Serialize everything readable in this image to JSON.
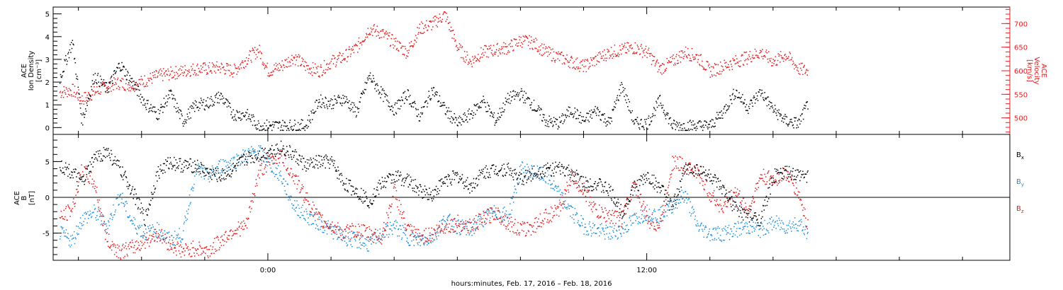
{
  "xlabel": "hours:minutes, Feb. 17, 2016 – Feb. 18, 2016",
  "x_ticks": [
    "0:00",
    "12:00"
  ],
  "colors": {
    "black": "#000000",
    "red": "#e41a1c",
    "blue": "#1f8fd8"
  },
  "chart_data": [
    {
      "type": "scatter",
      "ylabel_left": [
        "ACE",
        "Ion Density",
        "[cm⁻³]"
      ],
      "ylabel_right": [
        "ACE",
        "Velocity",
        "[km/s]"
      ],
      "xlim_hours": [
        -6.8,
        23.5
      ],
      "data_end_hours": 17.1,
      "left_axis": {
        "ylim": [
          -0.3,
          5.3
        ],
        "ticks": [
          "0",
          "1",
          "2",
          "3",
          "4",
          "5"
        ],
        "tick_values": [
          0,
          1,
          2,
          3,
          4,
          5
        ]
      },
      "right_axis": {
        "ylim": [
          465,
          735
        ],
        "ticks": [
          "500",
          "550",
          "600",
          "650",
          "700"
        ],
        "tick_values": [
          500,
          550,
          600,
          650,
          700
        ]
      },
      "series": [
        {
          "axis": "left",
          "color": "black",
          "x": [
            -6.6,
            -6.2,
            -5.9,
            -5.5,
            -5.1,
            -4.7,
            -4.3,
            -3.9,
            -3.5,
            -3.1,
            -2.7,
            -2.3,
            -1.9,
            -1.5,
            -1.1,
            -0.7,
            -0.3,
            0.0,
            0.4,
            0.8,
            1.2,
            1.6,
            2.0,
            2.4,
            2.8,
            3.2,
            3.6,
            4.0,
            4.4,
            4.8,
            5.2,
            5.6,
            6.0,
            6.4,
            6.8,
            7.2,
            7.6,
            8.0,
            8.4,
            8.8,
            9.2,
            9.6,
            10.0,
            10.4,
            10.8,
            11.2,
            11.6,
            12.0,
            12.4,
            12.8,
            13.2,
            13.6,
            14.0,
            14.4,
            14.8,
            15.2,
            15.6,
            16.0,
            16.4,
            16.8,
            17.1
          ],
          "values": [
            2.2,
            3.8,
            0.3,
            2.3,
            1.7,
            2.8,
            2.0,
            1.1,
            0.6,
            1.5,
            0.3,
            1.0,
            1.1,
            1.4,
            0.6,
            0.6,
            0.1,
            0.1,
            0.1,
            0.1,
            0.1,
            1.2,
            1.1,
            1.3,
            0.7,
            2.3,
            1.5,
            0.8,
            1.5,
            0.5,
            1.7,
            0.8,
            0.2,
            0.6,
            1.2,
            0.3,
            1.3,
            1.5,
            1.0,
            0.3,
            0.2,
            0.8,
            0.3,
            0.8,
            0.2,
            1.9,
            0.2,
            0.2,
            1.2,
            0.1,
            0.1,
            0.1,
            0.1,
            0.7,
            1.6,
            0.9,
            1.6,
            0.8,
            0.3,
            0.2,
            1.1
          ]
        },
        {
          "axis": "right",
          "color": "red",
          "x": [
            -6.6,
            -6.2,
            -5.9,
            -5.5,
            -5.1,
            -4.7,
            -4.3,
            -3.9,
            -3.5,
            -3.1,
            -2.7,
            -2.3,
            -1.9,
            -1.5,
            -1.1,
            -0.7,
            -0.3,
            0.0,
            0.4,
            0.8,
            1.2,
            1.6,
            2.0,
            2.4,
            2.8,
            3.2,
            3.6,
            4.0,
            4.4,
            4.8,
            5.2,
            5.6,
            6.0,
            6.4,
            6.8,
            7.2,
            7.6,
            8.0,
            8.4,
            8.8,
            9.2,
            9.6,
            10.0,
            10.4,
            10.8,
            11.2,
            11.6,
            12.0,
            12.4,
            12.8,
            13.2,
            13.6,
            14.0,
            14.4,
            14.8,
            15.2,
            15.6,
            16.0,
            16.4,
            16.8,
            17.1
          ],
          "values": [
            555,
            560,
            540,
            555,
            570,
            575,
            570,
            580,
            590,
            595,
            600,
            605,
            605,
            608,
            600,
            625,
            645,
            600,
            610,
            630,
            610,
            600,
            620,
            630,
            650,
            690,
            680,
            660,
            640,
            690,
            700,
            720,
            650,
            620,
            640,
            645,
            650,
            665,
            660,
            640,
            630,
            620,
            610,
            625,
            640,
            645,
            650,
            640,
            605,
            620,
            640,
            630,
            600,
            610,
            620,
            630,
            640,
            620,
            635,
            605,
            600
          ]
        }
      ]
    },
    {
      "type": "scatter",
      "ylabel_left": [
        "ACE",
        "B",
        "[nT]"
      ],
      "xlim_hours": [
        -6.8,
        23.5
      ],
      "data_end_hours": 17.1,
      "ylim": [
        -8.8,
        8.8
      ],
      "ticks": [
        "-5",
        "0",
        "5"
      ],
      "tick_values": [
        -5,
        0,
        5
      ],
      "zero_line": true,
      "legend_placement": "right",
      "series": [
        {
          "name": "B",
          "sub": "x",
          "color": "black",
          "x": [
            -6.6,
            -6.2,
            -5.9,
            -5.5,
            -5.1,
            -4.7,
            -4.3,
            -3.9,
            -3.5,
            -3.1,
            -2.7,
            -2.3,
            -1.9,
            -1.5,
            -1.1,
            -0.7,
            -0.3,
            0.0,
            0.4,
            0.8,
            1.2,
            1.6,
            2.0,
            2.4,
            2.8,
            3.2,
            3.6,
            4.0,
            4.4,
            4.8,
            5.2,
            5.6,
            6.0,
            6.4,
            6.8,
            7.2,
            7.6,
            8.0,
            8.4,
            8.8,
            9.2,
            9.6,
            10.0,
            10.4,
            10.8,
            11.2,
            11.6,
            12.0,
            12.4,
            12.8,
            13.2,
            13.6,
            14.0,
            14.4,
            14.8,
            15.2,
            15.6,
            16.0,
            16.4,
            16.8,
            17.1
          ],
          "values": [
            4.5,
            3.5,
            2.0,
            5.5,
            6.5,
            4.0,
            1.0,
            -3.0,
            3.5,
            5.0,
            4.5,
            4.5,
            3.5,
            3.0,
            4.0,
            5.5,
            6.0,
            6.5,
            7.0,
            6.0,
            4.5,
            5.0,
            5.0,
            2.0,
            1.0,
            -0.5,
            2.0,
            3.0,
            2.5,
            1.0,
            0.5,
            2.5,
            3.0,
            1.5,
            3.5,
            4.0,
            4.0,
            2.5,
            3.5,
            4.0,
            4.0,
            3.5,
            2.0,
            2.0,
            1.0,
            -2.0,
            1.5,
            3.0,
            1.5,
            -1.5,
            4.0,
            4.0,
            3.0,
            1.0,
            -1.5,
            -2.5,
            -3.0,
            3.0,
            3.5,
            3.0,
            3.0
          ]
        },
        {
          "name": "B",
          "sub": "y",
          "color": "blue",
          "x": [
            -6.6,
            -6.2,
            -5.9,
            -5.5,
            -5.1,
            -4.7,
            -4.3,
            -3.9,
            -3.5,
            -3.1,
            -2.7,
            -2.3,
            -1.9,
            -1.5,
            -1.1,
            -0.7,
            -0.3,
            0.0,
            0.4,
            0.8,
            1.2,
            1.6,
            2.0,
            2.4,
            2.8,
            3.2,
            3.6,
            4.0,
            4.4,
            4.8,
            5.2,
            5.6,
            6.0,
            6.4,
            6.8,
            7.2,
            7.6,
            8.0,
            8.4,
            8.8,
            9.2,
            9.6,
            10.0,
            10.4,
            10.8,
            11.2,
            11.6,
            12.0,
            12.4,
            12.8,
            13.2,
            13.6,
            14.0,
            14.4,
            14.8,
            15.2,
            15.6,
            16.0,
            16.4,
            16.8,
            17.1
          ],
          "values": [
            -5.0,
            -6.0,
            -3.0,
            -2.0,
            -4.0,
            0.5,
            -3.5,
            -5.0,
            -4.5,
            -6.0,
            -5.0,
            4.0,
            3.0,
            4.5,
            5.0,
            6.0,
            6.5,
            5.0,
            3.0,
            -1.0,
            -2.5,
            -3.5,
            -4.5,
            -5.5,
            -6.0,
            -6.5,
            -5.0,
            -4.0,
            -5.5,
            -6.0,
            -5.5,
            -3.0,
            -4.0,
            -4.5,
            -3.0,
            -2.0,
            -2.5,
            4.0,
            3.5,
            3.0,
            0.5,
            -2.0,
            -4.0,
            -4.5,
            -5.0,
            -4.5,
            -3.0,
            -2.0,
            -2.5,
            -1.0,
            0.5,
            -4.0,
            -5.0,
            -5.0,
            -4.5,
            -4.0,
            -4.5,
            -3.5,
            -4.0,
            -3.5,
            -5.0
          ]
        },
        {
          "name": "B",
          "sub": "z",
          "color": "red",
          "x": [
            -6.6,
            -6.2,
            -5.9,
            -5.5,
            -5.1,
            -4.7,
            -4.3,
            -3.9,
            -3.5,
            -3.1,
            -2.7,
            -2.3,
            -1.9,
            -1.5,
            -1.1,
            -0.7,
            -0.3,
            0.0,
            0.4,
            0.8,
            1.2,
            1.6,
            2.0,
            2.4,
            2.8,
            3.2,
            3.6,
            4.0,
            4.4,
            4.8,
            5.2,
            5.6,
            6.0,
            6.4,
            6.8,
            7.2,
            7.6,
            8.0,
            8.4,
            8.8,
            9.2,
            9.6,
            10.0,
            10.4,
            10.8,
            11.2,
            11.6,
            12.0,
            12.4,
            12.8,
            13.2,
            13.6,
            14.0,
            14.4,
            14.8,
            15.2,
            15.6,
            16.0,
            16.4,
            16.8,
            17.1
          ],
          "values": [
            -3.0,
            -1.5,
            4.0,
            2.0,
            -6.0,
            -7.5,
            -7.0,
            -6.0,
            -5.0,
            -6.5,
            -7.5,
            -7.0,
            -7.5,
            -6.0,
            -4.5,
            -4.0,
            3.5,
            5.0,
            6.0,
            3.0,
            0.0,
            -3.0,
            -4.0,
            -5.0,
            -4.5,
            -5.0,
            -5.5,
            1.0,
            -4.5,
            -5.5,
            -5.0,
            -4.0,
            -3.5,
            -4.0,
            -3.0,
            -2.0,
            -3.5,
            -4.5,
            -4.0,
            -2.5,
            -2.0,
            3.0,
            1.0,
            -2.0,
            -2.5,
            -3.0,
            2.0,
            -3.0,
            -4.0,
            5.0,
            4.5,
            3.5,
            0.5,
            -1.5,
            1.0,
            -2.0,
            3.0,
            2.5,
            3.5,
            0.5,
            -4.0
          ]
        }
      ]
    }
  ]
}
